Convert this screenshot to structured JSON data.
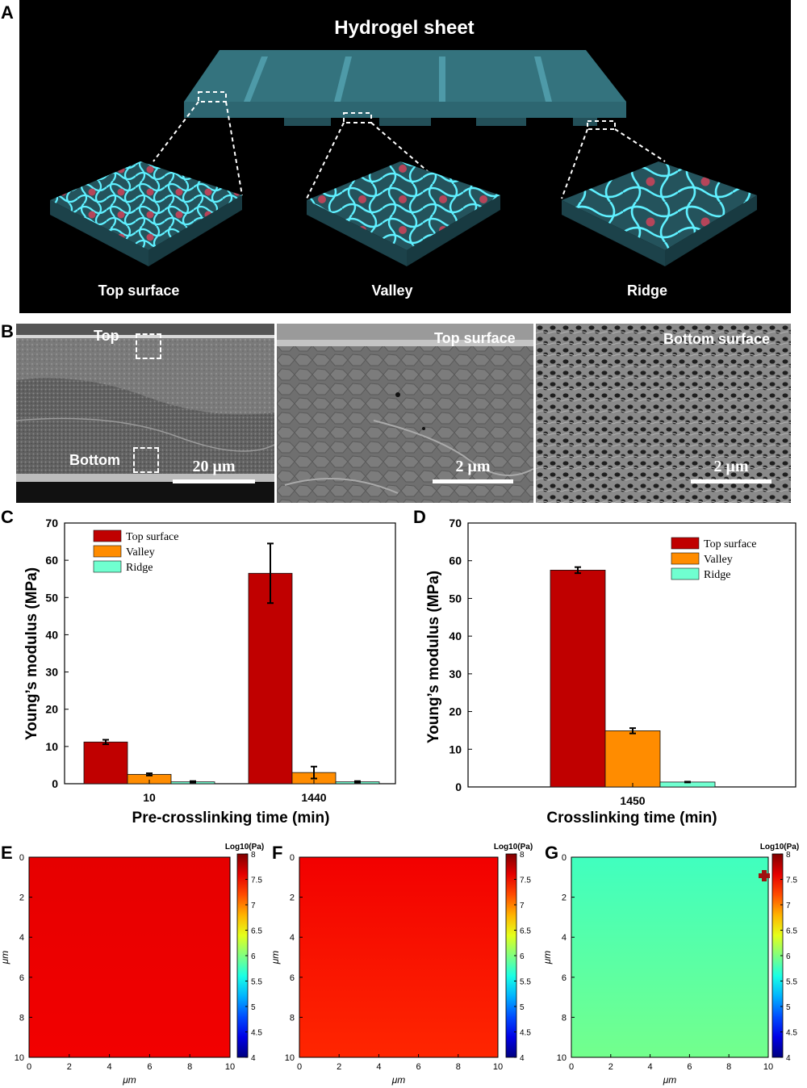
{
  "panel_letters": {
    "A": "A",
    "B": "B",
    "C": "C",
    "D": "D",
    "E": "E",
    "F": "F",
    "G": "G"
  },
  "panel_a": {
    "title": "Hydrogel sheet",
    "labels": [
      "Top surface",
      "Valley",
      "Ridge"
    ]
  },
  "panel_b": {
    "images": [
      {
        "label": "",
        "top_label": "Top",
        "bottom_label": "Bottom",
        "scale": "20 μm"
      },
      {
        "label": "Top surface",
        "scale": "2 μm"
      },
      {
        "label": "Bottom surface",
        "scale": "2 μm"
      }
    ]
  },
  "colors": {
    "top_surface": "#c00000",
    "valley": "#ff8c00",
    "ridge": "#70ffd0"
  },
  "chart_data": [
    {
      "id": "C",
      "type": "bar",
      "xlabel": "Pre-crosslinking time (min)",
      "ylabel": "Young’s modulus (MPa)",
      "ylim": [
        0,
        70
      ],
      "yticks": [
        0,
        10,
        20,
        30,
        40,
        50,
        60,
        70
      ],
      "categories": [
        "10",
        "1440"
      ],
      "legend_position": "top-left",
      "series": [
        {
          "name": "Top surface",
          "values": [
            11.2,
            56.5
          ],
          "errors": [
            0.6,
            8.0
          ]
        },
        {
          "name": "Valley",
          "values": [
            2.5,
            3.0
          ],
          "errors": [
            0.3,
            1.6
          ]
        },
        {
          "name": "Ridge",
          "values": [
            0.5,
            0.5
          ],
          "errors": [
            0.2,
            0.2
          ]
        }
      ]
    },
    {
      "id": "D",
      "type": "bar",
      "xlabel": "Crosslinking time (min)",
      "ylabel": "Young’s modulus (MPa)",
      "ylim": [
        0,
        70
      ],
      "yticks": [
        0,
        10,
        20,
        30,
        40,
        50,
        60,
        70
      ],
      "categories": [
        "1450"
      ],
      "legend_position": "top-right",
      "series": [
        {
          "name": "Top surface",
          "values": [
            57.5
          ],
          "errors": [
            0.8
          ]
        },
        {
          "name": "Valley",
          "values": [
            14.9
          ],
          "errors": [
            0.7
          ]
        },
        {
          "name": "Ridge",
          "values": [
            1.3
          ],
          "errors": [
            0.1
          ]
        }
      ]
    },
    {
      "id": "E",
      "type": "heatmap",
      "xlabel": "μm",
      "ylabel": "μm",
      "xlim": [
        0,
        10
      ],
      "ylim": [
        0,
        10
      ],
      "xticks": [
        0,
        2,
        4,
        6,
        8,
        10
      ],
      "yticks": [
        0,
        2,
        4,
        6,
        8,
        10
      ],
      "colorbar_title": "Log10(Pa)",
      "colorbar_ticks": [
        "8",
        "7.5",
        "7",
        "6.5",
        "6",
        "5.5",
        "5",
        "4.5",
        "4"
      ],
      "colorbar_range": [
        4,
        8
      ],
      "value_top": 7.6,
      "value_bottom": 7.55
    },
    {
      "id": "F",
      "type": "heatmap",
      "xlabel": "μm",
      "ylabel": "μm",
      "xlim": [
        0,
        10
      ],
      "ylim": [
        0,
        10
      ],
      "xticks": [
        0,
        2,
        4,
        6,
        8,
        10
      ],
      "yticks": [
        0,
        2,
        4,
        6,
        8,
        10
      ],
      "colorbar_title": "Log10(Pa)",
      "colorbar_ticks": [
        "8",
        "7.5",
        "7",
        "6.5",
        "6",
        "5.5",
        "5",
        "4.5",
        "4"
      ],
      "colorbar_range": [
        4,
        8
      ],
      "value_top": 7.55,
      "value_bottom": 7.35
    },
    {
      "id": "G",
      "type": "heatmap",
      "xlabel": "μm",
      "ylabel": "μm",
      "xlim": [
        0,
        10
      ],
      "ylim": [
        0,
        10
      ],
      "xticks": [
        0,
        2,
        4,
        6,
        8,
        10
      ],
      "yticks": [
        0,
        2,
        4,
        6,
        8,
        10
      ],
      "colorbar_title": "Log10(Pa)",
      "colorbar_ticks": [
        "8",
        "7.5",
        "7",
        "6.5",
        "6",
        "5.5",
        "5",
        "4.5",
        "4"
      ],
      "colorbar_range": [
        4,
        8
      ],
      "value_top": 5.75,
      "value_bottom": 5.95
    }
  ]
}
